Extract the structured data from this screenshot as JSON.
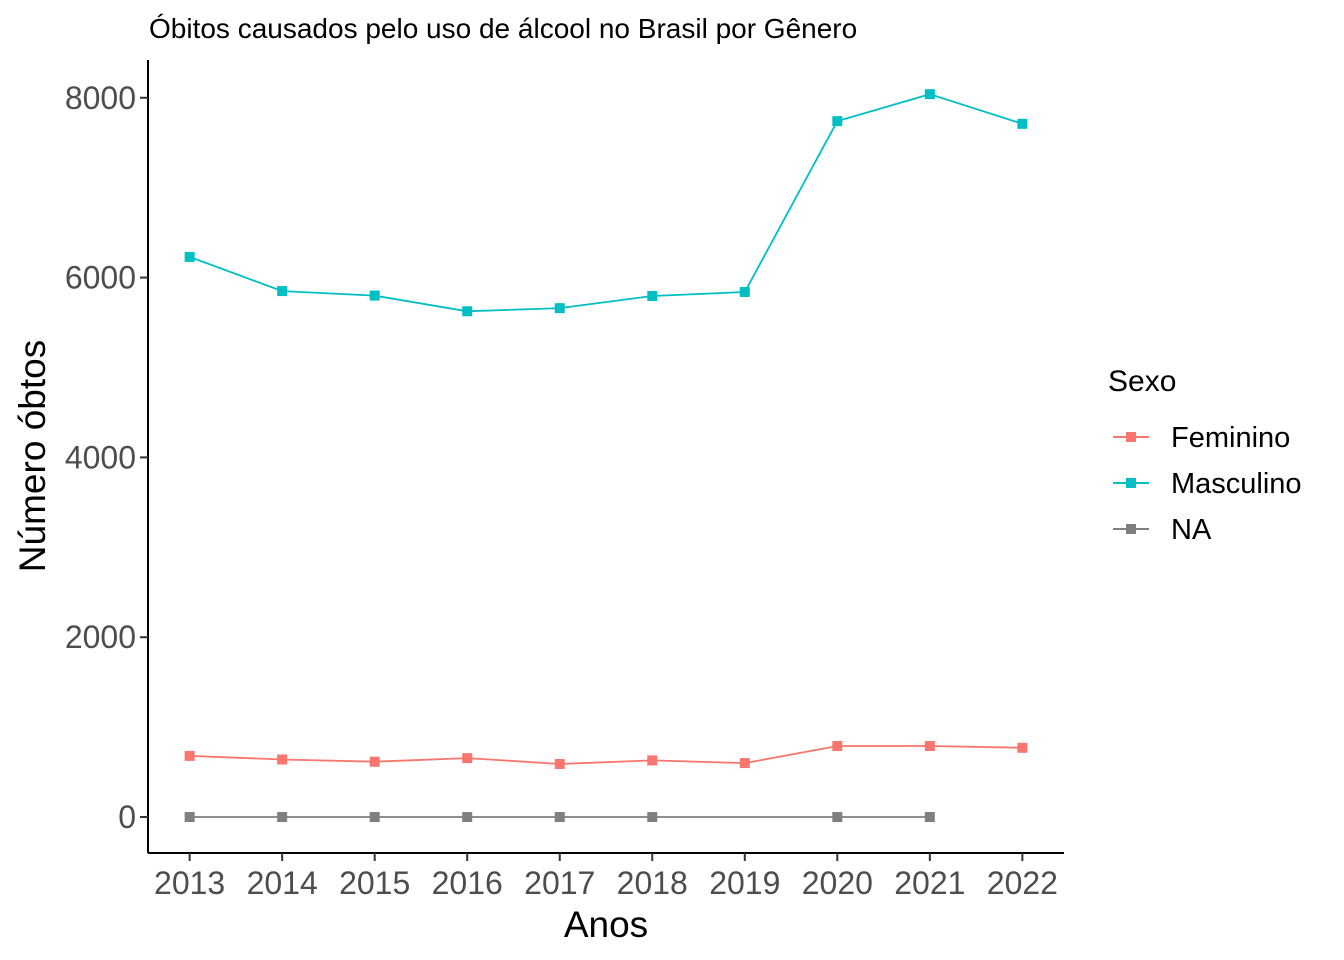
{
  "chart_data": {
    "type": "line",
    "title": "Óbitos causados pelo uso de álcool no Brasil por Gênero",
    "xlabel": "Anos",
    "ylabel": "Número óbtos",
    "x": [
      2013,
      2014,
      2015,
      2016,
      2017,
      2018,
      2019,
      2020,
      2021,
      2022
    ],
    "x_tick_labels": [
      "2013",
      "2014",
      "2015",
      "2016",
      "2017",
      "2018",
      "2019",
      "2020",
      "2021",
      "2022"
    ],
    "y_ticks": [
      0,
      2000,
      4000,
      6000,
      8000
    ],
    "y_tick_labels": [
      "0",
      "2000",
      "4000",
      "6000",
      "8000"
    ],
    "ylim": [
      -400,
      8420
    ],
    "xlim": [
      2012.55,
      2022.45
    ],
    "grid": false,
    "legend": {
      "title": "Sexo",
      "position": "right"
    },
    "series": [
      {
        "name": "Feminino",
        "color": "#F8766D",
        "values": [
          680,
          640,
          615,
          655,
          590,
          630,
          600,
          790,
          790,
          770
        ]
      },
      {
        "name": "Masculino",
        "color": "#00BFC4",
        "values": [
          6230,
          5850,
          5800,
          5625,
          5660,
          5795,
          5840,
          7740,
          8040,
          7710
        ]
      },
      {
        "name": "NA",
        "color": "#7F7F7F",
        "values": [
          0,
          0,
          0,
          0,
          0,
          0,
          null,
          0,
          0,
          null
        ]
      }
    ]
  }
}
